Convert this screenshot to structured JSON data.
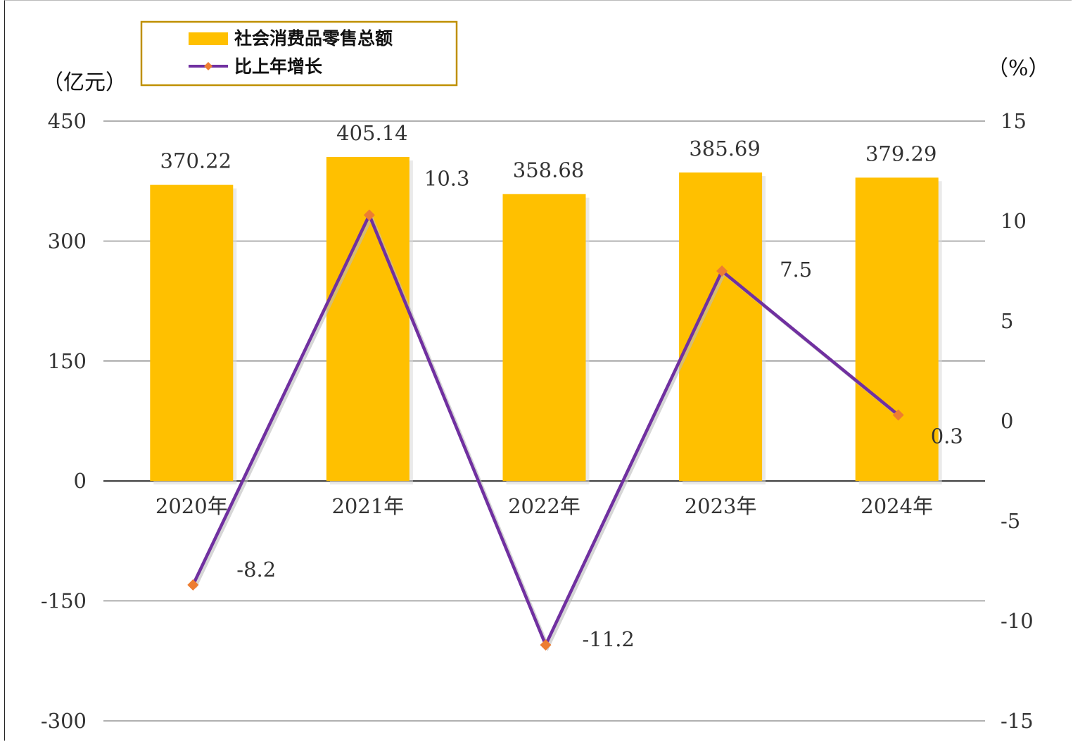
{
  "colors": {
    "bar": "#FFC000",
    "line": "#7030A0",
    "marker": "#ED7D31",
    "grid": "#808080",
    "legend_border": "#BF9000"
  },
  "chart_data": {
    "type": "bar",
    "categories": [
      "2020年",
      "2021年",
      "2022年",
      "2023年",
      "2024年"
    ],
    "series": [
      {
        "name": "社会消费品零售总额",
        "type": "bar",
        "axis": "left",
        "values": [
          370.22,
          405.14,
          358.68,
          385.69,
          379.29
        ],
        "labels": [
          "370.22",
          "405.14",
          "358.68",
          "385.69",
          "379.29"
        ]
      },
      {
        "name": "比上年增长",
        "type": "line",
        "axis": "right",
        "values": [
          -8.2,
          10.3,
          -11.2,
          7.5,
          0.3
        ],
        "labels": [
          "-8.2",
          "10.3",
          "-11.2",
          "7.5",
          "0.3"
        ]
      }
    ],
    "left_axis": {
      "unit": "（亿元）",
      "ylim": [
        -300,
        450
      ],
      "ticks": [
        "450",
        "300",
        "150",
        "0",
        "-150",
        "-300"
      ]
    },
    "right_axis": {
      "unit": "（%）",
      "ylim": [
        -15,
        15
      ],
      "ticks": [
        "15",
        "10",
        "5",
        "0",
        "-5",
        "-10",
        "-15"
      ]
    },
    "grid": true,
    "legend_position": "top-left"
  }
}
